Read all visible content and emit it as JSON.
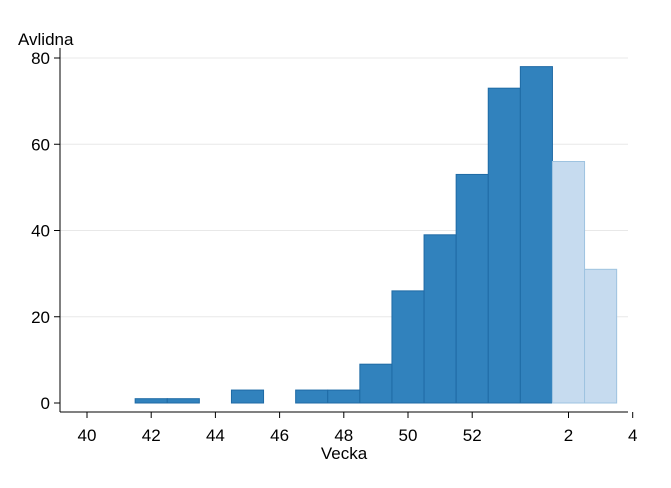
{
  "chart_data": {
    "type": "bar",
    "title": "",
    "ylabel": "Avlidna",
    "xlabel": "Vecka",
    "ylim": [
      0,
      80
    ],
    "yticks": [
      0,
      20,
      40,
      60,
      80
    ],
    "xticks": [
      "40",
      "42",
      "44",
      "46",
      "48",
      "50",
      "52",
      "2",
      "4"
    ],
    "grid": true,
    "legend": "none",
    "categories": [
      "40",
      "41",
      "42",
      "43",
      "44",
      "45",
      "46",
      "47",
      "48",
      "49",
      "50",
      "51",
      "52",
      "53",
      "1",
      "2",
      "3",
      "4"
    ],
    "series": [
      {
        "color": "#3182bd",
        "values": [
          0,
          0,
          1,
          1,
          0,
          3,
          0,
          3,
          3,
          9,
          26,
          39,
          53,
          73,
          78,
          0,
          0,
          0
        ]
      },
      {
        "color": "#c6dbef",
        "values": [
          0,
          0,
          0,
          0,
          0,
          0,
          0,
          0,
          0,
          0,
          0,
          0,
          0,
          0,
          0,
          56,
          31,
          0
        ]
      }
    ]
  }
}
